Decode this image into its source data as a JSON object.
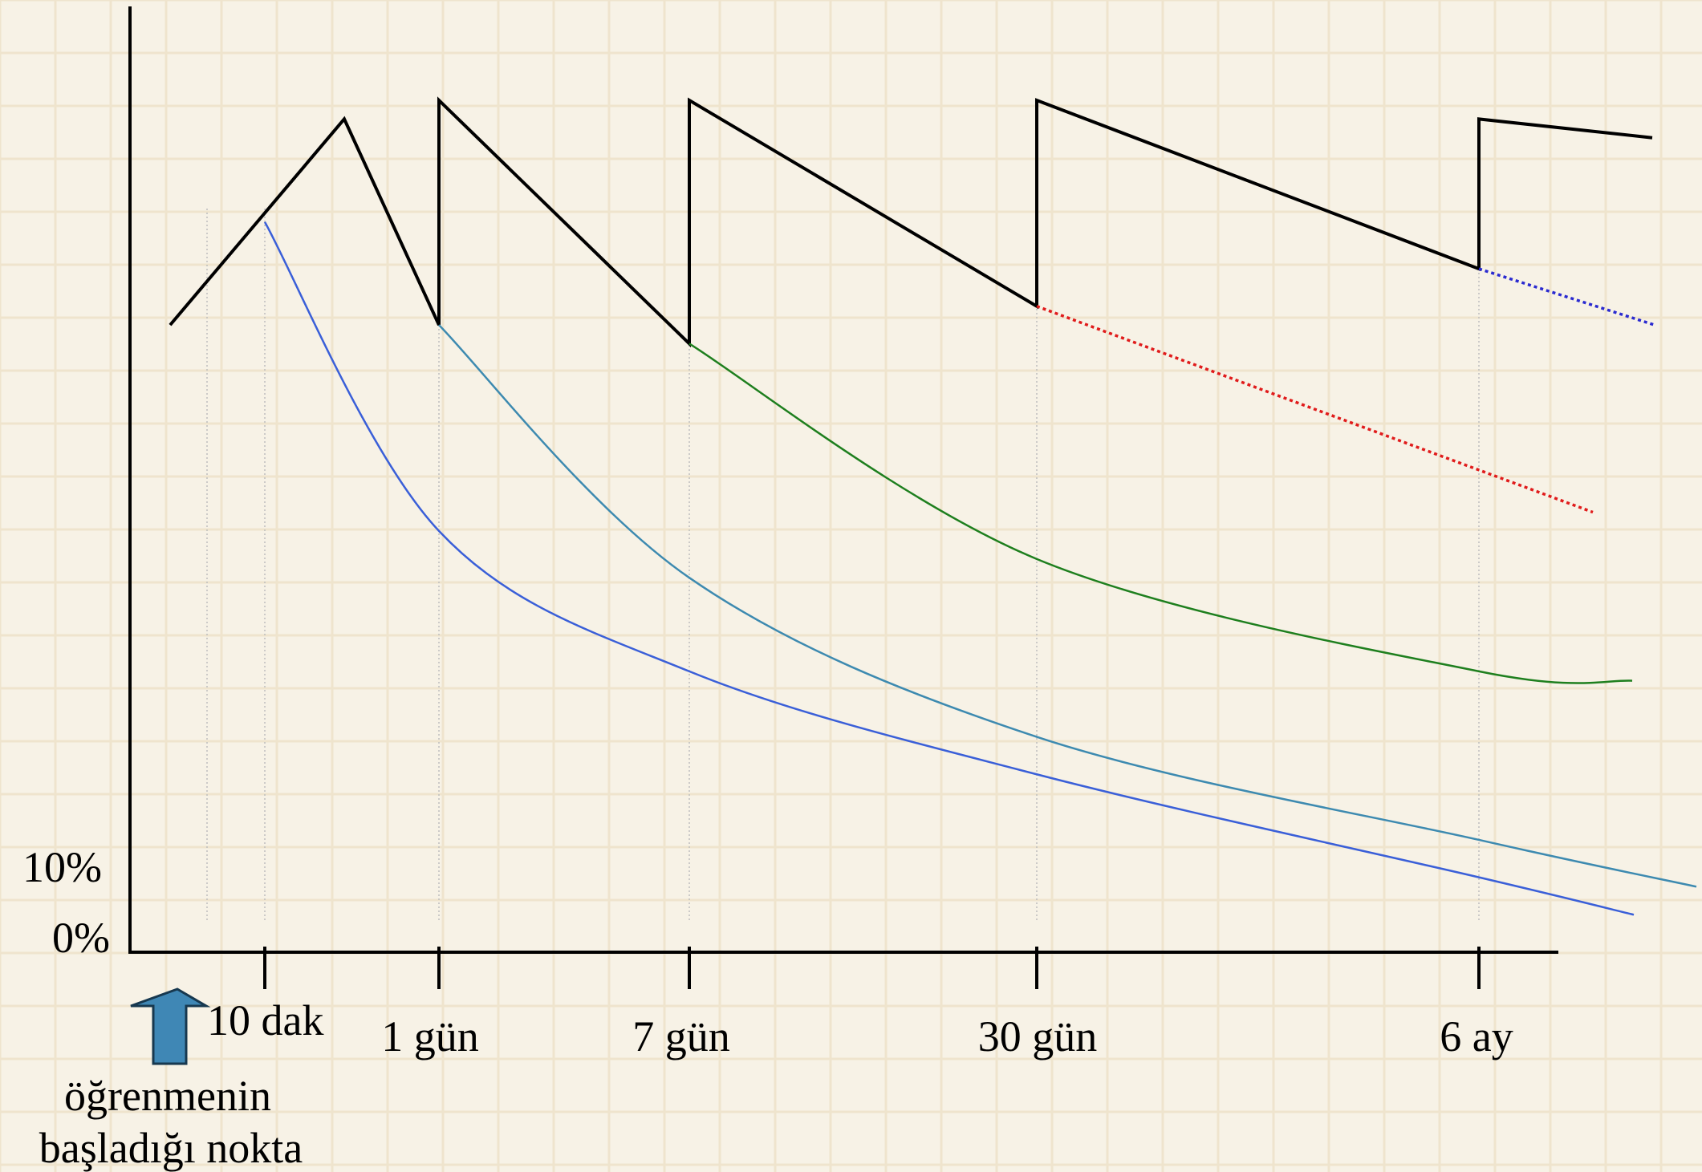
{
  "chart_data": {
    "type": "line",
    "title": "",
    "xlabel": "",
    "ylabel": "",
    "y_tick_labels": [
      "0%",
      "10%"
    ],
    "x_tick_labels": [
      "10 dak",
      "1 gün",
      "7 gün",
      "30 gün",
      "6 ay"
    ],
    "start_label": [
      "öğrenmenin",
      "başladığı nokta"
    ],
    "grid": true,
    "colors": {
      "review": "#000000",
      "decay_after_10dak": "#3a5fd8",
      "decay_after_1gun": "#3d8ab0",
      "decay_after_7gun": "#1e7f1e",
      "decay_after_30gun": "#e01b1b",
      "decay_after_6ay": "#2a2ad0",
      "arrow": "#3f87b5"
    },
    "x_scale": "ordinal, non-linear time",
    "y_range_percent": [
      0,
      100
    ],
    "series": [
      {
        "style": "solid",
        "color": "#000000",
        "points": [
          {
            "x": "başlangıç",
            "y": 67
          },
          {
            "x": "10 dak dolayı",
            "y": 89
          },
          {
            "x": "1 gün",
            "y": 67
          },
          {
            "x": "1 gün",
            "y": 91
          },
          {
            "x": "7 gün",
            "y": 65
          },
          {
            "x": "7 gün",
            "y": 91
          },
          {
            "x": "30 gün",
            "y": 69
          },
          {
            "x": "30 gün",
            "y": 91
          },
          {
            "x": "6 ay",
            "y": 73
          },
          {
            "x": "6 ay",
            "y": 89
          },
          {
            "x": "6 ay sonrası",
            "y": 87
          }
        ]
      },
      {
        "style": "solid",
        "color": "#3a5fd8",
        "points": [
          {
            "x": "10 dak",
            "y": 78
          },
          {
            "x": "1 gün",
            "y": 45
          },
          {
            "x": "7 gün",
            "y": 30
          },
          {
            "x": "30 gün",
            "y": 19
          },
          {
            "x": "6 ay",
            "y": 8
          },
          {
            "x": "son",
            "y": 4
          }
        ]
      },
      {
        "style": "solid",
        "color": "#3d8ab0",
        "points": [
          {
            "x": "1 gün",
            "y": 67
          },
          {
            "x": "7 gün",
            "y": 40
          },
          {
            "x": "30 gün",
            "y": 23
          },
          {
            "x": "6 ay",
            "y": 12
          },
          {
            "x": "son",
            "y": 7
          }
        ]
      },
      {
        "style": "solid",
        "color": "#1e7f1e",
        "points": [
          {
            "x": "7 gün",
            "y": 65
          },
          {
            "x": "30 gün",
            "y": 42
          },
          {
            "x": "6 ay",
            "y": 30
          },
          {
            "x": "son",
            "y": 29
          }
        ]
      },
      {
        "style": "dotted",
        "color": "#e01b1b",
        "points": [
          {
            "x": "30 gün",
            "y": 69
          },
          {
            "x": "son",
            "y": 47
          }
        ]
      },
      {
        "style": "dotted",
        "color": "#2a2ad0",
        "points": [
          {
            "x": "6 ay",
            "y": 73
          },
          {
            "x": "son",
            "y": 67
          }
        ]
      }
    ]
  }
}
